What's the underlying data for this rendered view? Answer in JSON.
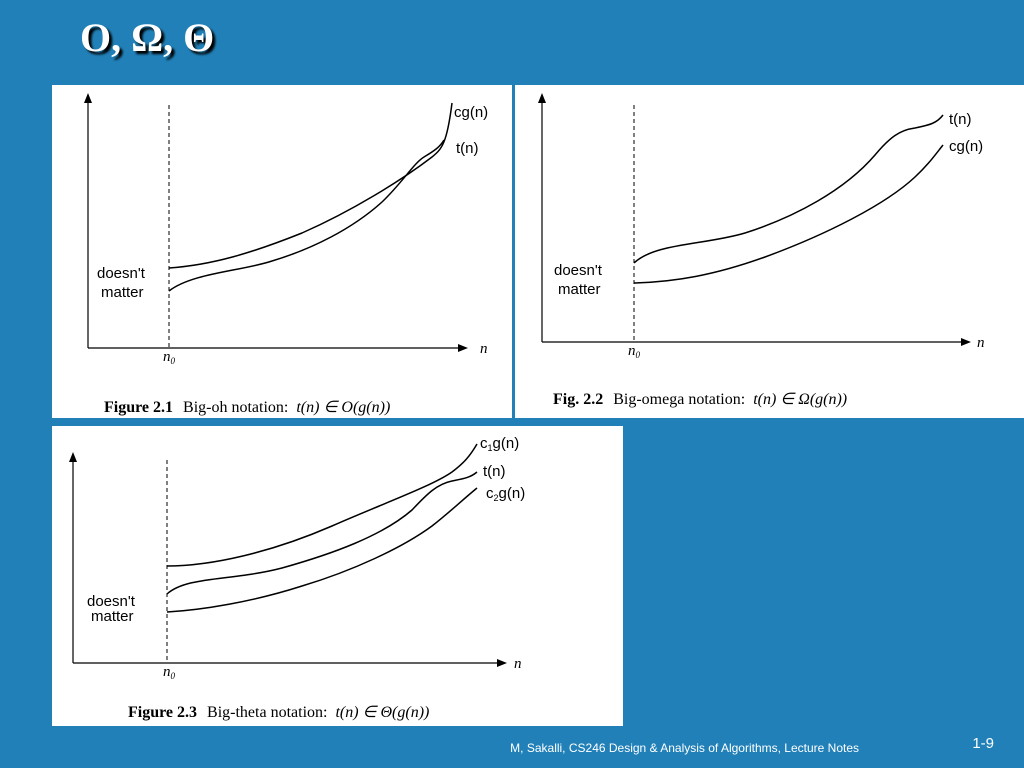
{
  "slide": {
    "title": "O, Ω, Θ",
    "footer": "M, Sakalli, CS246 Design & Analysis of Algorithms, Lecture Notes",
    "slide_number": "1-9"
  },
  "figures": [
    {
      "caption_label": "Figure 2.1",
      "caption_text": "Big-oh notation:",
      "caption_math": "t(n) ∈ O(g(n))",
      "curves": [
        "cg(n)",
        "t(n)"
      ],
      "region_label_line1": "doesn't",
      "region_label_line2": "matter",
      "threshold_label": "n",
      "threshold_subscript": "0",
      "x_axis_label": "n"
    },
    {
      "caption_label": "Fig. 2.2",
      "caption_text": "Big-omega notation:",
      "caption_math": "t(n) ∈ Ω(g(n))",
      "curves": [
        "t(n)",
        "cg(n)"
      ],
      "region_label_line1": "doesn't",
      "region_label_line2": "matter",
      "threshold_label": "n",
      "threshold_subscript": "0",
      "x_axis_label": "n"
    },
    {
      "caption_label": "Figure 2.3",
      "caption_text": "Big-theta notation:",
      "caption_math": "t(n) ∈ Θ(g(n))",
      "curves": [
        "c",
        "1",
        "g(n)",
        "t(n)",
        "c",
        "2",
        "g(n)"
      ],
      "region_label_line1": "doesn't",
      "region_label_line2": "matter",
      "threshold_label": "n",
      "threshold_subscript": "0",
      "x_axis_label": "n"
    }
  ]
}
